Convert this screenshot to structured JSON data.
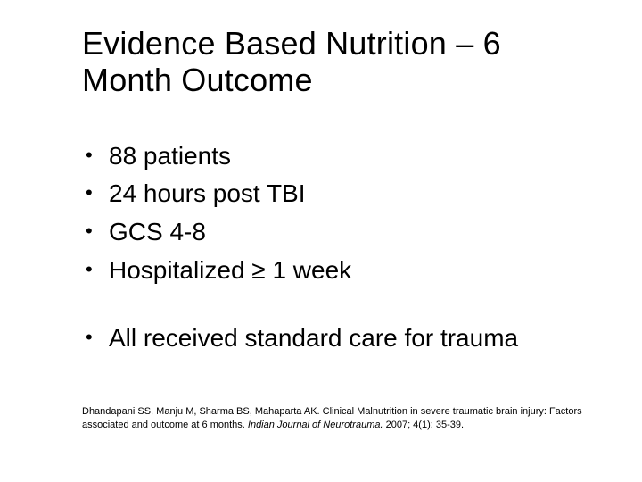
{
  "title": "Evidence Based Nutrition – 6 Month Outcome",
  "title_fontsize": 36,
  "bullets_group1": [
    "88 patients",
    "24 hours post TBI",
    "GCS 4-8",
    "Hospitalized ≥ 1 week"
  ],
  "bullets_group2": [
    "All received standard care for trauma"
  ],
  "bullet_fontsize": 28,
  "citation": {
    "text_before": "Dhandapani SS, Manju M, Sharma BS, Mahaparta AK. Clinical Malnutrition in severe traumatic brain injury: Factors associated and outcome at 6 months. ",
    "journal_italic": "Indian Journal of Neurotrauma.",
    "text_after": " 2007; 4(1): 35-39.",
    "fontsize": 11
  },
  "colors": {
    "background": "#ffffff",
    "text": "#000000",
    "bullet_marker": "#000000"
  }
}
